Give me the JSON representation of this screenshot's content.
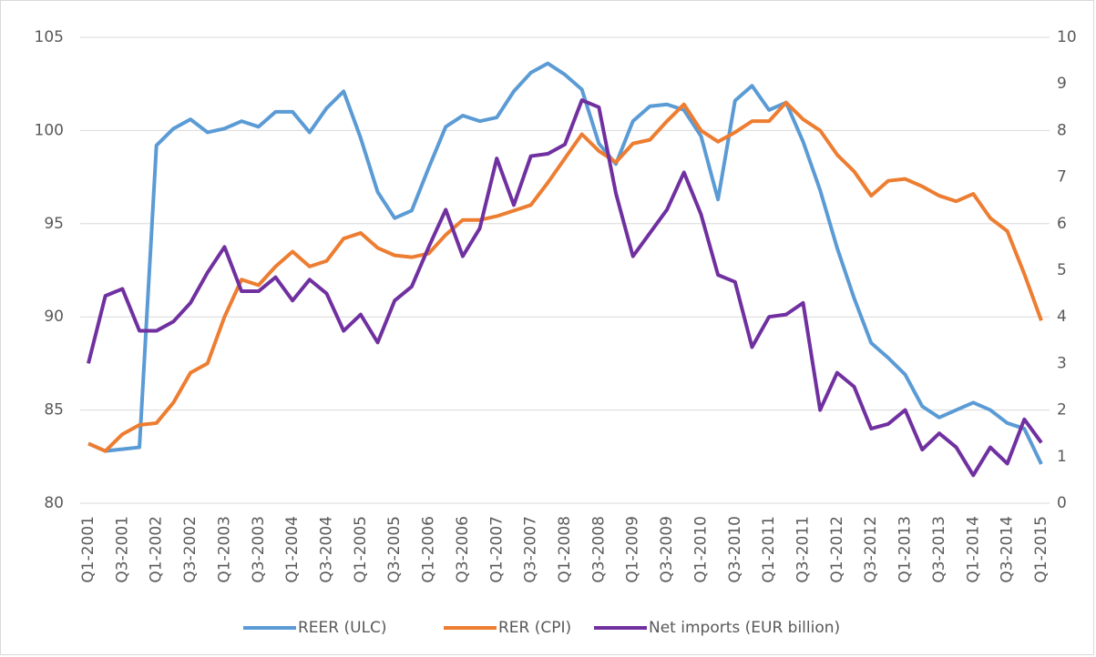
{
  "chart_data": {
    "type": "line",
    "categories": [
      "Q1-2001",
      null,
      "Q3-2001",
      null,
      "Q1-2002",
      null,
      "Q3-2002",
      null,
      "Q1-2003",
      null,
      "Q3-2003",
      null,
      "Q1-2004",
      null,
      "Q3-2004",
      null,
      "Q1-2005",
      null,
      "Q3-2005",
      null,
      "Q1-2006",
      null,
      "Q3-2006",
      null,
      "Q1-2007",
      null,
      "Q3-2007",
      null,
      "Q1-2008",
      null,
      "Q3-2008",
      null,
      "Q1-2009",
      null,
      "Q3-2009",
      null,
      "Q1-2010",
      null,
      "Q3-2010",
      null,
      "Q1-2011",
      null,
      "Q3-2011",
      null,
      "Q1-2012",
      null,
      "Q3-2012",
      null,
      "Q1-2013",
      null,
      "Q3-2013",
      null,
      "Q1-2014",
      null,
      "Q3-2014",
      null,
      "Q1-2015"
    ],
    "series": [
      {
        "name": "REER (ULC)",
        "color": "#5b9bd5",
        "values": [
          83.2,
          82.8,
          82.9,
          83.0,
          99.2,
          100.1,
          100.6,
          99.9,
          100.1,
          100.5,
          100.2,
          101.0,
          101.0,
          99.9,
          101.2,
          102.1,
          99.6,
          96.7,
          95.3,
          95.7,
          98.0,
          100.2,
          100.8,
          100.5,
          100.7,
          102.1,
          103.1,
          103.6,
          103.0,
          102.2,
          99.3,
          98.2,
          100.5,
          101.3,
          101.4,
          101.1,
          99.7,
          96.3,
          101.6,
          102.4,
          101.1,
          101.5,
          99.4,
          96.8,
          93.7,
          91.0,
          88.6,
          87.8,
          86.9,
          85.2,
          84.6,
          85.0,
          85.4,
          85.0,
          84.3,
          84.0,
          82.1
        ]
      },
      {
        "name": "RER (CPI)",
        "color": "#ed7d31",
        "values": [
          83.2,
          82.8,
          83.7,
          84.2,
          84.3,
          85.4,
          87.0,
          87.5,
          90.0,
          92.0,
          91.7,
          92.7,
          93.5,
          92.7,
          93.0,
          94.2,
          94.5,
          93.7,
          93.3,
          93.2,
          93.4,
          94.4,
          95.2,
          95.2,
          95.4,
          95.7,
          96.0,
          97.2,
          98.5,
          99.8,
          98.9,
          98.3,
          99.3,
          99.5,
          100.5,
          101.4,
          100.0,
          99.4,
          99.9,
          100.5,
          100.5,
          101.5,
          100.6,
          100.0,
          98.7,
          97.8,
          96.5,
          97.3,
          97.4,
          97.0,
          96.5,
          96.2,
          96.6,
          95.3,
          94.6,
          92.3,
          89.8
        ]
      },
      {
        "name": "Net imports (EUR billion)",
        "color": "#7030a0",
        "axis": "y2",
        "values": [
          3.0,
          4.45,
          4.6,
          3.7,
          3.7,
          3.9,
          4.3,
          4.95,
          5.5,
          4.55,
          4.55,
          4.85,
          4.35,
          4.8,
          4.5,
          3.7,
          4.05,
          3.45,
          4.35,
          4.65,
          5.5,
          6.3,
          5.3,
          5.9,
          7.4,
          6.4,
          7.45,
          7.5,
          7.7,
          8.65,
          8.5,
          6.65,
          5.3,
          5.8,
          6.3,
          7.1,
          6.2,
          4.9,
          4.75,
          3.35,
          4.0,
          4.05,
          4.3,
          2.0,
          2.8,
          2.5,
          1.6,
          1.7,
          2.0,
          1.15,
          1.5,
          1.2,
          0.6,
          1.2,
          0.85,
          1.8,
          1.3
        ]
      }
    ],
    "ylim": [
      80,
      105
    ],
    "yticks": [
      80,
      85,
      90,
      95,
      100,
      105
    ],
    "y2lim": [
      0,
      10
    ],
    "y2ticks": [
      0,
      1,
      2,
      3,
      4,
      5,
      6,
      7,
      8,
      9,
      10
    ],
    "grid": true,
    "legend": "bottom"
  }
}
